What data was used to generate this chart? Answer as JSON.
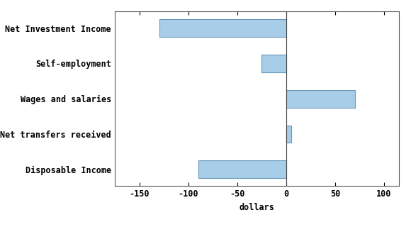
{
  "categories": [
    "Net Investment Income",
    "Self-employment",
    "Wages and salaries",
    "Net transfers received",
    "Disposable Income"
  ],
  "values": [
    -130,
    -25,
    70,
    5,
    -90
  ],
  "bar_color": "#a8cde8",
  "bar_edgecolor": "#6699bb",
  "xlabel": "dollars",
  "xlim": [
    -175,
    115
  ],
  "xticks": [
    -150,
    -100,
    -50,
    0,
    50,
    100
  ],
  "background_color": "#ffffff",
  "bar_height": 0.5,
  "label_fontsize": 8.5,
  "tick_fontsize": 8.5,
  "xlabel_fontsize": 8.5
}
